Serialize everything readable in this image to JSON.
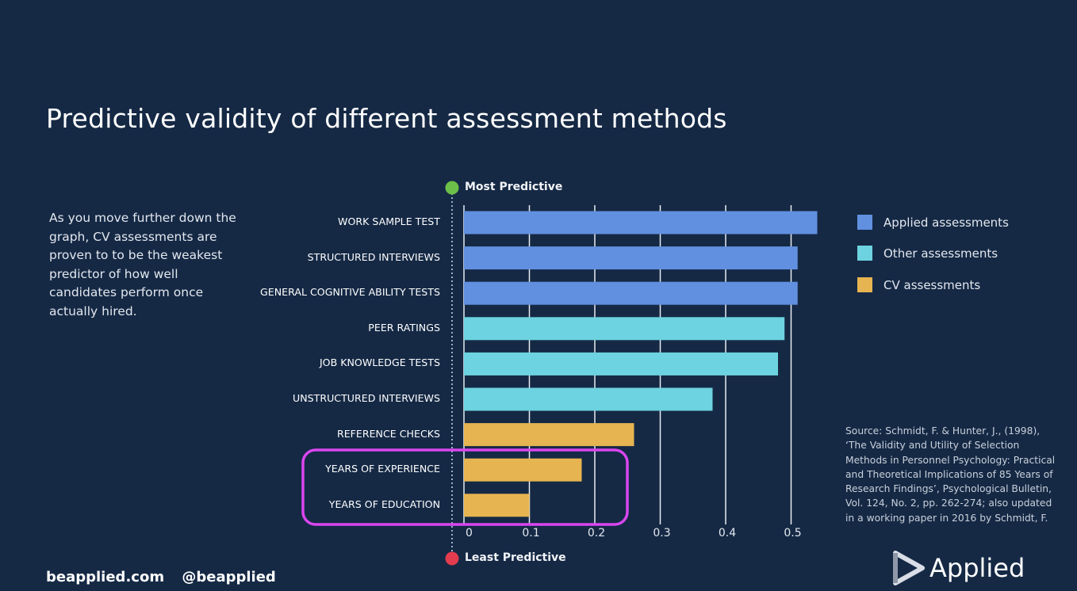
{
  "header": {
    "title": "Predictive validity of different assessment methods"
  },
  "blurb": "As you move further down the graph, CV assessments are proven to to be the weakest predictor of how well candidates perform once actually hired.",
  "axis_ends": {
    "top": "Most Predictive",
    "bottom": "Least Predictive",
    "top_color": "#6cc04a",
    "bottom_color": "#e23c4e"
  },
  "highlight_color": "#d946ef",
  "source": "Source: Schmidt, F. & Hunter, J., (1998), ‘The Validity and Utility of Selection Methods in Personnel Psychology: Practical and Theoretical Implications of 85 Years of Research Findings’, Psychological Bulletin, Vol. 124, No. 2, pp. 262-274; also updated in a working paper in 2016 by Schmidt, F.",
  "footer": {
    "site": "beapplied.com",
    "handle": "@beapplied"
  },
  "logo": {
    "text": "Applied"
  },
  "chart_data": {
    "type": "bar",
    "orientation": "horizontal",
    "title": "Predictive validity of different assessment methods",
    "xlabel": "",
    "ylabel": "",
    "xlim": [
      0,
      0.55
    ],
    "xticks": [
      0,
      0.1,
      0.2,
      0.3,
      0.4,
      0.5
    ],
    "xtick_labels": [
      "0",
      "0.1",
      "0.2",
      "0.3",
      "0.4",
      "0.5"
    ],
    "grid": true,
    "legend_position": "right",
    "categories": [
      "WORK SAMPLE TEST",
      "STRUCTURED INTERVIEWS",
      "GENERAL COGNITIVE ABILITY TESTS",
      "PEER RATINGS",
      "JOB KNOWLEDGE TESTS",
      "UNSTRUCTURED INTERVIEWS",
      "REFERENCE CHECKS",
      "YEARS OF EXPERIENCE",
      "YEARS OF EDUCATION"
    ],
    "values": [
      0.54,
      0.51,
      0.51,
      0.49,
      0.48,
      0.38,
      0.26,
      0.18,
      0.1
    ],
    "groups": [
      "Applied assessments",
      "Applied assessments",
      "Applied assessments",
      "Other assessments",
      "Other assessments",
      "Other assessments",
      "CV assessments",
      "CV assessments",
      "CV assessments"
    ],
    "legend": [
      {
        "name": "Applied assessments",
        "color": "#6190e0"
      },
      {
        "name": "Other assessments",
        "color": "#6dd3e0"
      },
      {
        "name": "CV assessments",
        "color": "#e6b450"
      }
    ],
    "highlighted_categories": [
      "YEARS OF EXPERIENCE",
      "YEARS OF EDUCATION"
    ]
  }
}
